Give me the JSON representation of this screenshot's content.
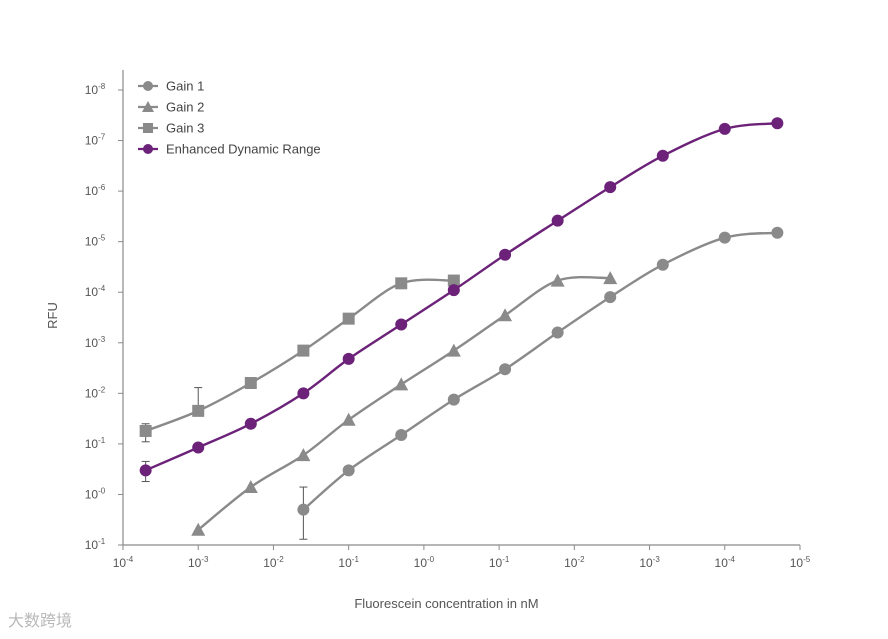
{
  "chart_data": {
    "type": "line",
    "xlabel": "Fluorescein concentration in nM",
    "ylabel": "RFU",
    "x_scale": "log",
    "y_scale": "log",
    "xlim": [
      0.0001,
      100000.0
    ],
    "ylim": [
      0.1,
      100000000.0
    ],
    "x_ticks": [
      {
        "value": 0.0001,
        "base": "10",
        "exp": "-4"
      },
      {
        "value": 0.001,
        "base": "10",
        "exp": "-3"
      },
      {
        "value": 0.01,
        "base": "10",
        "exp": "-2"
      },
      {
        "value": 0.1,
        "base": "10",
        "exp": "-1"
      },
      {
        "value": 1.0,
        "base": "10",
        "exp": "-0"
      },
      {
        "value": 10.0,
        "base": "10",
        "exp": "-1"
      },
      {
        "value": 100.0,
        "base": "10",
        "exp": "-2"
      },
      {
        "value": 1000.0,
        "base": "10",
        "exp": "-3"
      },
      {
        "value": 10000.0,
        "base": "10",
        "exp": "-4"
      },
      {
        "value": 100000.0,
        "base": "10",
        "exp": "-5"
      }
    ],
    "y_ticks": [
      {
        "value": 0.1,
        "base": "10",
        "exp": "-1"
      },
      {
        "value": 1.0,
        "base": "10",
        "exp": "-0"
      },
      {
        "value": 10.0,
        "base": "10",
        "exp": "-1"
      },
      {
        "value": 100.0,
        "base": "10",
        "exp": "-2"
      },
      {
        "value": 1000.0,
        "base": "10",
        "exp": "-3"
      },
      {
        "value": 10000.0,
        "base": "10",
        "exp": "-4"
      },
      {
        "value": 100000.0,
        "base": "10",
        "exp": "-5"
      },
      {
        "value": 1000000.0,
        "base": "10",
        "exp": "-6"
      },
      {
        "value": 10000000.0,
        "base": "10",
        "exp": "-7"
      },
      {
        "value": 100000000.0,
        "base": "10",
        "exp": "-8"
      }
    ],
    "legend_position": "top-left",
    "grid": false,
    "series": [
      {
        "name": "Gain 1",
        "marker": "circle",
        "color": "#8a8a8a",
        "x": [
          0.025,
          0.1,
          0.5,
          2.5,
          12,
          60,
          300,
          1500,
          10000,
          50000
        ],
        "y": [
          0.5,
          3,
          15,
          75,
          300,
          1600,
          8000,
          35000,
          120000,
          150000
        ],
        "error": [
          {
            "index": 0,
            "low": 0.13,
            "high": 1.4
          }
        ]
      },
      {
        "name": "Gain 2",
        "marker": "triangle",
        "color": "#8a8a8a",
        "x": [
          0.001,
          0.005,
          0.025,
          0.1,
          0.5,
          2.5,
          12,
          60,
          300
        ],
        "y": [
          0.2,
          1.4,
          6,
          30,
          150,
          700,
          3500,
          17000,
          19000
        ]
      },
      {
        "name": "Gain 3",
        "marker": "square",
        "color": "#8a8a8a",
        "x": [
          0.0002,
          0.001,
          0.005,
          0.025,
          0.1,
          0.5,
          2.5
        ],
        "y": [
          18,
          45,
          160,
          700,
          3000,
          15000,
          17000
        ],
        "error": [
          {
            "index": 0,
            "low": 11,
            "high": 25
          },
          {
            "index": 1,
            "low": 40,
            "high": 130
          }
        ]
      },
      {
        "name": "Enhanced Dynamic Range",
        "marker": "circle",
        "color": "#6b2278",
        "x": [
          0.0002,
          0.001,
          0.005,
          0.025,
          0.1,
          0.5,
          2.5,
          12,
          60,
          300,
          1500,
          10000,
          50000
        ],
        "y": [
          3,
          8.5,
          25,
          100,
          480,
          2300,
          11000,
          55000,
          260000,
          1200000,
          5000000,
          17000000,
          22000000
        ],
        "error": [
          {
            "index": 0,
            "low": 1.8,
            "high": 4.5
          }
        ]
      }
    ]
  },
  "watermark": {
    "text": "大数跨境"
  }
}
